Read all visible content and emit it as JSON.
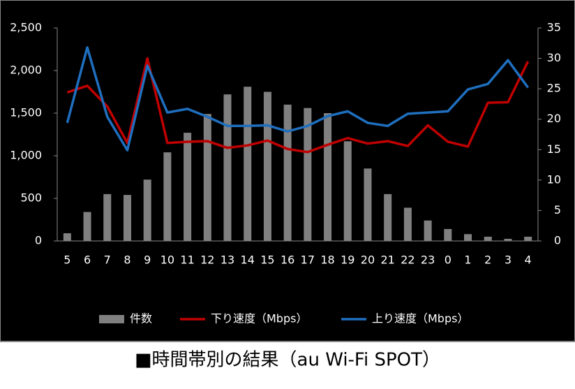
{
  "chart_data": {
    "type": "combo",
    "title": "■時間帯別の結果（au Wi-Fi SPOT）",
    "categories": [
      "5",
      "6",
      "7",
      "8",
      "9",
      "10",
      "11",
      "12",
      "13",
      "14",
      "15",
      "16",
      "17",
      "18",
      "19",
      "20",
      "21",
      "22",
      "23",
      "0",
      "1",
      "2",
      "3",
      "4"
    ],
    "series": [
      {
        "name": "件数",
        "type": "bar",
        "axis": "y",
        "color": "#808080",
        "values": [
          90,
          340,
          550,
          540,
          720,
          1040,
          1270,
          1490,
          1720,
          1810,
          1750,
          1600,
          1560,
          1500,
          1170,
          850,
          550,
          390,
          240,
          140,
          80,
          50,
          25,
          50
        ]
      },
      {
        "name": "下り速度（Mbps）",
        "type": "line",
        "axis": "y2",
        "color": "#c00000",
        "values": [
          24.4,
          25.5,
          22.1,
          16.1,
          30.0,
          16.1,
          16.3,
          16.4,
          15.3,
          15.7,
          16.5,
          15.1,
          14.6,
          15.8,
          16.9,
          16.0,
          16.4,
          15.6,
          19.0,
          16.3,
          15.5,
          22.7,
          22.8,
          29.5
        ]
      },
      {
        "name": "上り速度（Mbps）",
        "type": "line",
        "axis": "y2",
        "color": "#1f6fbf",
        "values": [
          19.4,
          31.8,
          20.4,
          14.9,
          28.8,
          21.1,
          21.7,
          20.4,
          18.9,
          18.9,
          19.0,
          18.0,
          18.9,
          20.5,
          21.3,
          19.4,
          18.9,
          20.9,
          21.1,
          21.3,
          24.9,
          25.8,
          29.7,
          25.2
        ]
      }
    ],
    "ylim": [
      0,
      2500
    ],
    "yticks": [
      0,
      500,
      {
        "value": 1000,
        "label": "1,000"
      },
      {
        "value": 1500,
        "label": "1,500"
      },
      {
        "value": 2000,
        "label": "2,000"
      },
      {
        "value": 2500,
        "label": "2,500"
      }
    ],
    "y2lim": [
      0,
      35
    ],
    "y2ticks": [
      0,
      5,
      10,
      15,
      20,
      25,
      30,
      35
    ]
  }
}
